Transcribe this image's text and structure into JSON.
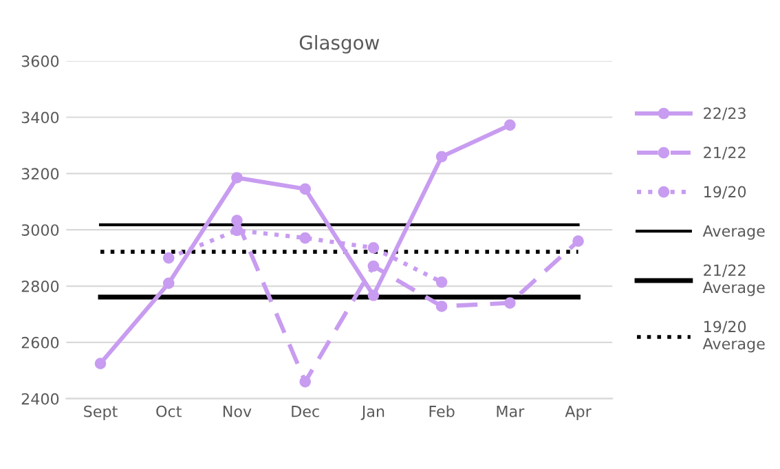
{
  "chart_data": {
    "type": "line",
    "title": "Glasgow",
    "categories": [
      "Sept",
      "Oct",
      "Nov",
      "Dec",
      "Jan",
      "Feb",
      "Mar",
      "Apr"
    ],
    "series": [
      {
        "name": "22/23",
        "color": "#c89cf0",
        "marker": "circle",
        "line_style": "solid",
        "values": [
          2525,
          2810,
          3185,
          3145,
          2767,
          3260,
          3372,
          null
        ]
      },
      {
        "name": "21/22",
        "color": "#c89cf0",
        "marker": "circle",
        "line_style": "dashed",
        "values": [
          null,
          null,
          3033,
          2460,
          2871,
          2728,
          2740,
          2960
        ]
      },
      {
        "name": "19/20",
        "color": "#c89cf0",
        "marker": "circle",
        "line_style": "dotted",
        "values": [
          null,
          2900,
          2998,
          2971,
          2936,
          2814,
          null,
          null
        ]
      },
      {
        "name": "Average",
        "color": "#000000",
        "marker": "none",
        "line_style": "solid",
        "values": [
          3018,
          3018,
          3018,
          3018,
          3018,
          3018,
          3018,
          3018
        ]
      },
      {
        "name": "21/22\nAverage",
        "color": "#000000",
        "marker": "none",
        "line_style": "solid",
        "values": [
          2761,
          2761,
          2761,
          2761,
          2761,
          2761,
          2761,
          2761
        ]
      },
      {
        "name": "19/20\nAverage",
        "color": "#000000",
        "marker": "none",
        "line_style": "dotted",
        "values": [
          2922,
          2922,
          2922,
          2922,
          2922,
          2922,
          2922,
          2922
        ]
      }
    ],
    "ylim": [
      2400,
      3600
    ],
    "yticks": [
      2400,
      2600,
      2800,
      3000,
      3200,
      3400,
      3600
    ],
    "grid": "y",
    "legend": "right"
  }
}
